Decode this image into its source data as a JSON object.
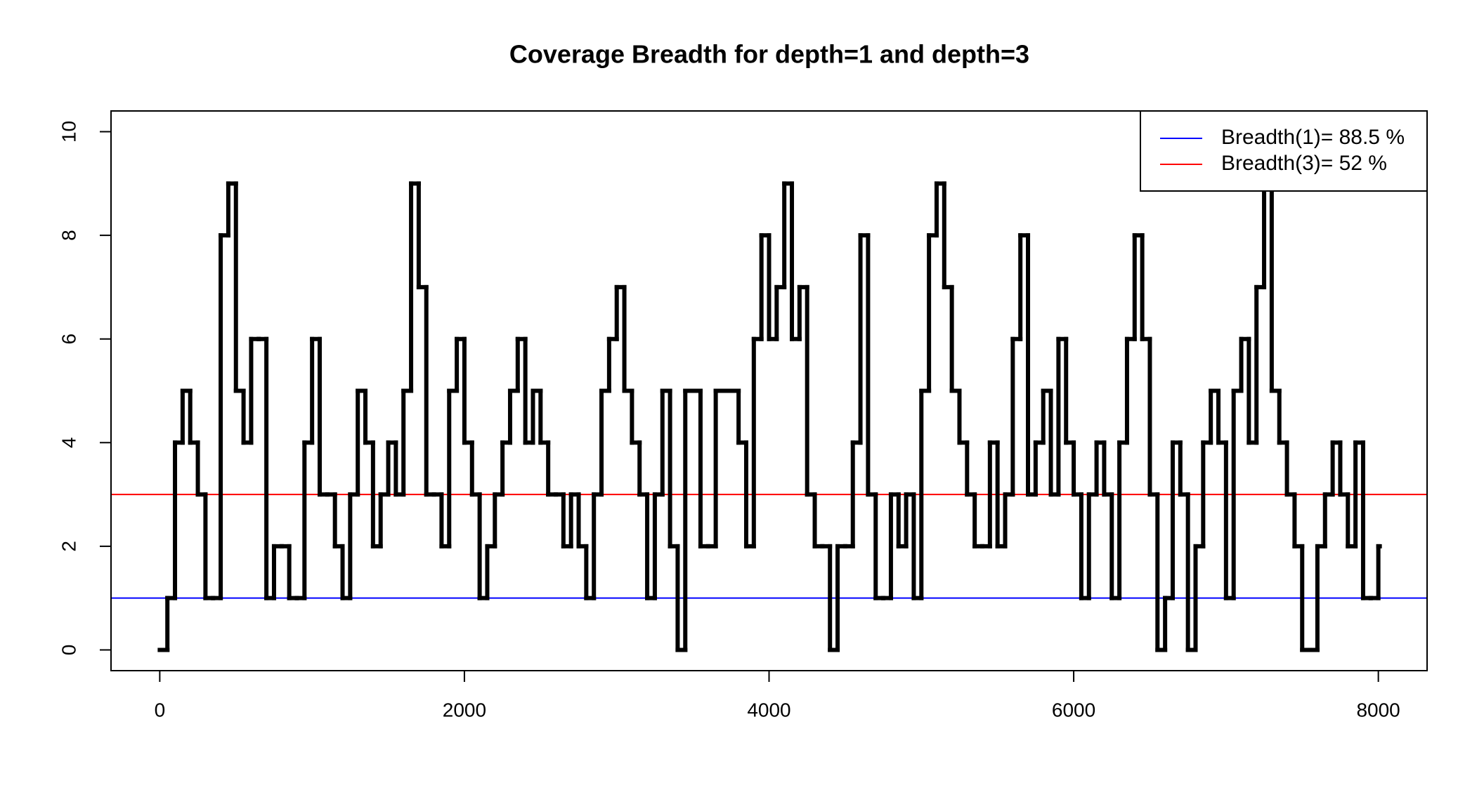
{
  "chart_data": {
    "type": "line",
    "title": "Coverage Breadth for depth=1 and depth=3",
    "x": [
      0,
      50,
      100,
      150,
      200,
      250,
      300,
      350,
      400,
      450,
      500,
      550,
      600,
      650,
      700,
      750,
      800,
      850,
      900,
      950,
      1000,
      1050,
      1100,
      1150,
      1200,
      1250,
      1300,
      1350,
      1400,
      1450,
      1500,
      1550,
      1600,
      1650,
      1700,
      1750,
      1800,
      1850,
      1900,
      1950,
      2000,
      2050,
      2100,
      2150,
      2200,
      2250,
      2300,
      2350,
      2400,
      2450,
      2500,
      2550,
      2600,
      2650,
      2700,
      2750,
      2800,
      2850,
      2900,
      2950,
      3000,
      3050,
      3100,
      3150,
      3200,
      3250,
      3300,
      3350,
      3400,
      3450,
      3500,
      3550,
      3600,
      3650,
      3700,
      3750,
      3800,
      3850,
      3900,
      3950,
      4000,
      4050,
      4100,
      4150,
      4200,
      4250,
      4300,
      4350,
      4400,
      4450,
      4500,
      4550,
      4600,
      4650,
      4700,
      4750,
      4800,
      4850,
      4900,
      4950,
      5000,
      5050,
      5100,
      5150,
      5200,
      5250,
      5300,
      5350,
      5400,
      5450,
      5500,
      5550,
      5600,
      5650,
      5700,
      5750,
      5800,
      5850,
      5900,
      5950,
      6000,
      6050,
      6100,
      6150,
      6200,
      6250,
      6300,
      6350,
      6400,
      6450,
      6500,
      6550,
      6600,
      6650,
      6700,
      6750,
      6800,
      6850,
      6900,
      6950,
      7000,
      7050,
      7100,
      7150,
      7200,
      7250,
      7300,
      7350,
      7400,
      7450,
      7500,
      7550,
      7600,
      7650,
      7700,
      7750,
      7800,
      7850,
      7900,
      7950,
      8000
    ],
    "series": [
      {
        "color": "#000000",
        "step": true,
        "values": [
          0,
          1,
          4,
          5,
          4,
          3,
          1,
          1,
          8,
          9,
          5,
          4,
          6,
          6,
          1,
          2,
          2,
          1,
          1,
          4,
          6,
          3,
          3,
          2,
          1,
          3,
          5,
          4,
          2,
          3,
          4,
          3,
          5,
          9,
          7,
          3,
          3,
          2,
          5,
          6,
          4,
          3,
          1,
          2,
          3,
          4,
          5,
          6,
          4,
          5,
          4,
          3,
          3,
          2,
          3,
          2,
          1,
          3,
          5,
          6,
          7,
          5,
          4,
          3,
          1,
          3,
          5,
          2,
          0,
          5,
          5,
          2,
          2,
          5,
          5,
          5,
          4,
          2,
          6,
          8,
          6,
          7,
          9,
          6,
          7,
          3,
          2,
          2,
          0,
          2,
          2,
          4,
          8,
          3,
          1,
          1,
          3,
          2,
          3,
          1,
          5,
          8,
          9,
          7,
          5,
          4,
          3,
          2,
          2,
          4,
          2,
          3,
          6,
          8,
          3,
          4,
          5,
          3,
          6,
          4,
          3,
          1,
          3,
          4,
          3,
          1,
          4,
          6,
          8,
          6,
          3,
          0,
          1,
          4,
          3,
          0,
          2,
          4,
          5,
          4,
          1,
          5,
          6,
          4,
          7,
          9,
          5,
          4,
          3,
          2,
          0,
          0,
          2,
          3,
          4,
          3,
          2,
          4,
          1,
          1,
          2
        ]
      }
    ],
    "hlines": [
      {
        "name": "Breadth(1)= 88.5 %",
        "color": "#0000ff",
        "value": 1
      },
      {
        "name": "Breadth(3)= 52 %",
        "color": "#ff0000",
        "value": 3
      }
    ],
    "xlim": [
      -320,
      8320
    ],
    "ylim": [
      -0.4,
      10.4
    ],
    "xticks": [
      0,
      2000,
      4000,
      6000,
      8000
    ],
    "yticks": [
      0,
      2,
      4,
      6,
      8,
      10
    ],
    "legend": "top-right"
  }
}
